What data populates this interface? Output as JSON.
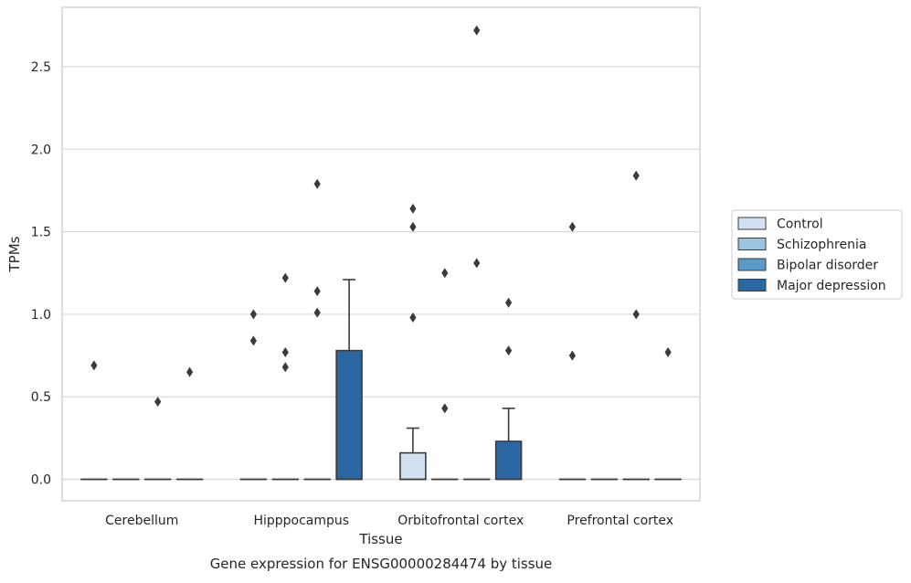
{
  "chart_data": {
    "type": "box",
    "caption": "Gene expression for ENSG00000284474 by tissue",
    "xlabel": "Tissue",
    "ylabel": "TPMs",
    "ylim": [
      -0.13,
      2.86
    ],
    "yticks": [
      0.0,
      0.5,
      1.0,
      1.5,
      2.0,
      2.5
    ],
    "ytick_labels": [
      "0.0",
      "0.5",
      "1.0",
      "1.5",
      "2.0",
      "2.5"
    ],
    "grid": "horizontal",
    "legend_position": "right",
    "categories": [
      "Cerebellum",
      "Hipppocampus",
      "Orbitofrontal cortex",
      "Prefrontal cortex"
    ],
    "series": [
      {
        "name": "Control",
        "color": "#d2e1f1",
        "boxes": [
          {
            "q1": 0,
            "median": 0,
            "q3": 0,
            "whislo": 0,
            "whishi": 0,
            "fliers": [
              0.69
            ]
          },
          {
            "q1": 0,
            "median": 0,
            "q3": 0,
            "whislo": 0,
            "whishi": 0,
            "fliers": [
              0.84,
              1.0
            ]
          },
          {
            "q1": 0,
            "median": 0,
            "q3": 0.16,
            "whislo": 0,
            "whishi": 0.31,
            "fliers": [
              0.98,
              1.53,
              1.64
            ]
          },
          {
            "q1": 0,
            "median": 0,
            "q3": 0,
            "whislo": 0,
            "whishi": 0,
            "fliers": [
              0.75,
              1.53
            ]
          }
        ]
      },
      {
        "name": "Schizophrenia",
        "color": "#9ac4df",
        "boxes": [
          {
            "q1": 0,
            "median": 0,
            "q3": 0,
            "whislo": 0,
            "whishi": 0,
            "fliers": []
          },
          {
            "q1": 0,
            "median": 0,
            "q3": 0,
            "whislo": 0,
            "whishi": 0,
            "fliers": [
              0.68,
              0.77,
              1.22
            ]
          },
          {
            "q1": 0,
            "median": 0,
            "q3": 0,
            "whislo": 0,
            "whishi": 0,
            "fliers": [
              0.43,
              1.25
            ]
          },
          {
            "q1": 0,
            "median": 0,
            "q3": 0,
            "whislo": 0,
            "whishi": 0,
            "fliers": []
          }
        ]
      },
      {
        "name": "Bipolar disorder",
        "color": "#5a9ac8",
        "boxes": [
          {
            "q1": 0,
            "median": 0,
            "q3": 0,
            "whislo": 0,
            "whishi": 0,
            "fliers": [
              0.47
            ]
          },
          {
            "q1": 0,
            "median": 0,
            "q3": 0,
            "whislo": 0,
            "whishi": 0,
            "fliers": [
              1.01,
              1.14,
              1.79
            ]
          },
          {
            "q1": 0,
            "median": 0,
            "q3": 0,
            "whislo": 0,
            "whishi": 0,
            "fliers": [
              1.31,
              2.72
            ]
          },
          {
            "q1": 0,
            "median": 0,
            "q3": 0,
            "whislo": 0,
            "whishi": 0,
            "fliers": [
              1.0,
              1.84
            ]
          }
        ]
      },
      {
        "name": "Major depression",
        "color": "#2b67a3",
        "boxes": [
          {
            "q1": 0,
            "median": 0,
            "q3": 0,
            "whislo": 0,
            "whishi": 0,
            "fliers": [
              0.65
            ]
          },
          {
            "q1": 0,
            "median": 0,
            "q3": 0.78,
            "whislo": 0,
            "whishi": 1.21,
            "fliers": []
          },
          {
            "q1": 0,
            "median": 0,
            "q3": 0.23,
            "whislo": 0,
            "whishi": 0.43,
            "fliers": [
              0.78,
              1.07
            ]
          },
          {
            "q1": 0,
            "median": 0,
            "q3": 0,
            "whislo": 0,
            "whishi": 0,
            "fliers": [
              0.77
            ]
          }
        ]
      }
    ]
  },
  "colors": {
    "grid": "#d9d9d9",
    "frame": "#cccccc",
    "line": "#3b3b3b",
    "text": "#262626"
  }
}
